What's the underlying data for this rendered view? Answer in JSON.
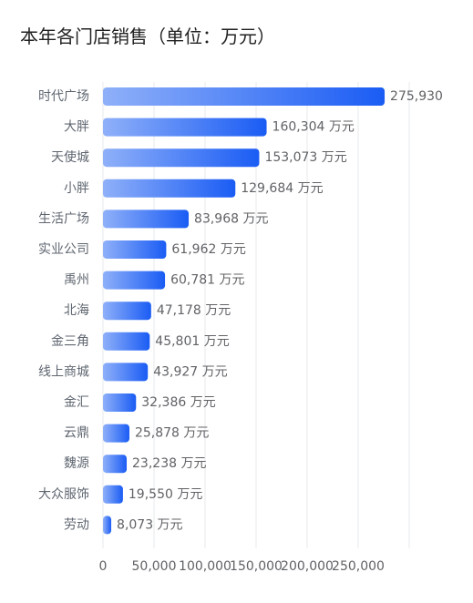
{
  "title": "本年各门店销售（单位：万元）",
  "chart_data": {
    "type": "bar",
    "orientation": "horizontal",
    "title": "本年各门店销售（单位：万元）",
    "categories": [
      "时代广场",
      "大胖",
      "天使城",
      "小胖",
      "生活广场",
      "实业公司",
      "禹州",
      "北海",
      "金三角",
      "线上商城",
      "金汇",
      "云鼎",
      "魏源",
      "大众服饰",
      "劳动"
    ],
    "values": [
      275930,
      160304,
      153073,
      129684,
      83968,
      61962,
      60781,
      47178,
      45801,
      43927,
      32386,
      25878,
      23238,
      19550,
      8073
    ],
    "data_labels": [
      "275,930",
      "160,304 万元",
      "153,073 万元",
      "129,684 万元",
      "83,968 万元",
      "61,962 万元",
      "60,781 万元",
      "47,178 万元",
      "45,801 万元",
      "43,927 万元",
      "32,386 万元",
      "25,878 万元",
      "23,238 万元",
      "19,550 万元",
      "8,073 万元"
    ],
    "x_ticks": [
      "0",
      "50,000",
      "100,000",
      "150,000",
      "200,000",
      "250,000"
    ],
    "xlim": [
      0,
      300000
    ],
    "grid": true,
    "bar_gradient": [
      "#8fb0f9",
      "#1a5cf4"
    ]
  }
}
